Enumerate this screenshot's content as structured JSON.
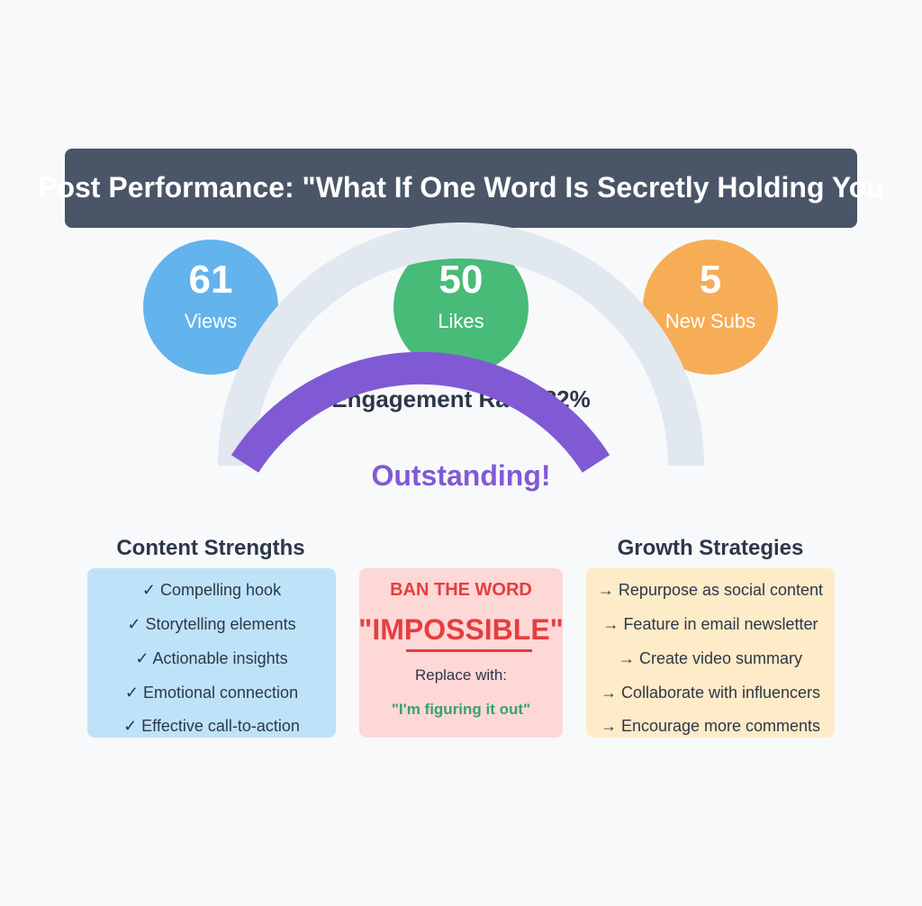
{
  "title": "Post Performance: \"What If One Word Is Secretly Holding You",
  "stats": [
    {
      "value": "61",
      "label": "Views",
      "color": "#63b3ed"
    },
    {
      "value": "50",
      "label": "Likes",
      "color": "#48bb78"
    },
    {
      "value": "5",
      "label": "New Subs",
      "color": "#f6ad55"
    }
  ],
  "engagement": {
    "label": "Engagement Rate: 82%",
    "percent": 82,
    "rating": "Outstanding!",
    "track_color": "#e2e8f0",
    "fill_color": "#805ad5"
  },
  "strengths": {
    "heading": "Content Strengths",
    "items": [
      "✓ Compelling hook",
      "✓ Storytelling elements",
      "✓ Actionable insights",
      "✓ Emotional connection",
      "✓ Effective call-to-action"
    ]
  },
  "ban": {
    "heading": "BAN THE WORD",
    "word": "\"IMPOSSIBLE\"",
    "replace_label": "Replace with:",
    "replacement": "\"I'm figuring it out\""
  },
  "growth": {
    "heading": "Growth Strategies",
    "items": [
      "→ Repurpose as social content",
      "→ Feature in email newsletter",
      "→ Create video summary",
      "→ Collaborate with influencers",
      "→ Encourage more comments"
    ]
  }
}
